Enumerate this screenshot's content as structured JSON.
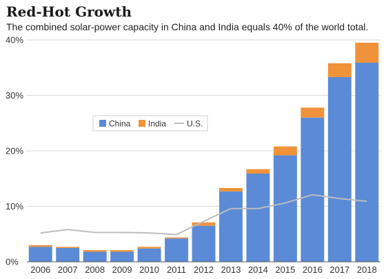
{
  "title": "Red-Hot Growth",
  "subtitle": "The combined solar-power capacity in China and India equals 40% of the world total.",
  "colors": {
    "china": "#5b8bd6",
    "india": "#f0923a",
    "us": "#bdbdbd",
    "grid": "#d9d9d9",
    "axis": "#555555"
  },
  "chart_data": {
    "type": "bar",
    "stacked": true,
    "categories": [
      "2006",
      "2007",
      "2008",
      "2009",
      "2010",
      "2011",
      "2012",
      "2013",
      "2014",
      "2015",
      "2016",
      "2017",
      "2018"
    ],
    "series": [
      {
        "name": "China",
        "type": "bar",
        "values": [
          2.7,
          2.5,
          1.8,
          1.8,
          2.4,
          4.2,
          6.5,
          12.7,
          15.9,
          19.2,
          26.0,
          33.3,
          35.9
        ]
      },
      {
        "name": "India",
        "type": "bar",
        "values": [
          0.3,
          0.2,
          0.3,
          0.3,
          0.3,
          0.2,
          0.6,
          0.6,
          0.8,
          1.6,
          1.8,
          2.5,
          3.6
        ]
      },
      {
        "name": "U.S.",
        "type": "line",
        "values": [
          5.2,
          5.8,
          5.3,
          5.3,
          5.2,
          4.9,
          7.3,
          9.6,
          9.6,
          10.6,
          12.1,
          11.4,
          10.9
        ]
      }
    ],
    "ylim": [
      0,
      40
    ],
    "yticks": [
      0,
      10,
      20,
      30,
      40
    ],
    "ytick_labels": [
      "0%",
      "10%",
      "20%",
      "30%",
      "40%"
    ],
    "grid": true,
    "legend": {
      "position": "center-left",
      "entries": [
        "China",
        "India",
        "U.S."
      ]
    }
  }
}
